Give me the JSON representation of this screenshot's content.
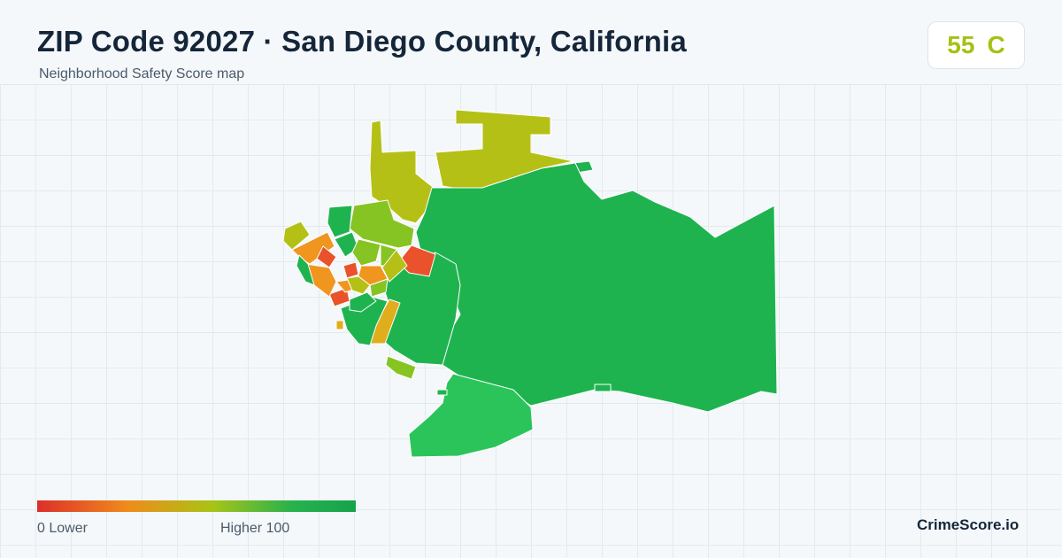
{
  "header": {
    "title": "ZIP Code 92027 · San Diego County, California",
    "subtitle": "Neighborhood Safety Score map"
  },
  "score": {
    "value": "55",
    "grade": "C",
    "color": "#a6c013"
  },
  "legend": {
    "min_label": "0  Lower",
    "max_label": "Higher  100",
    "color_low": "#dc2f2a",
    "color_high": "#16a34a"
  },
  "brand": "CrimeScore.io",
  "palette": {
    "red": "#e9522a",
    "orange": "#f0951e",
    "amber": "#e0ad1c",
    "olive": "#b5c016",
    "lime": "#86c423",
    "green": "#1fb350",
    "bright_green": "#2bc45a"
  }
}
